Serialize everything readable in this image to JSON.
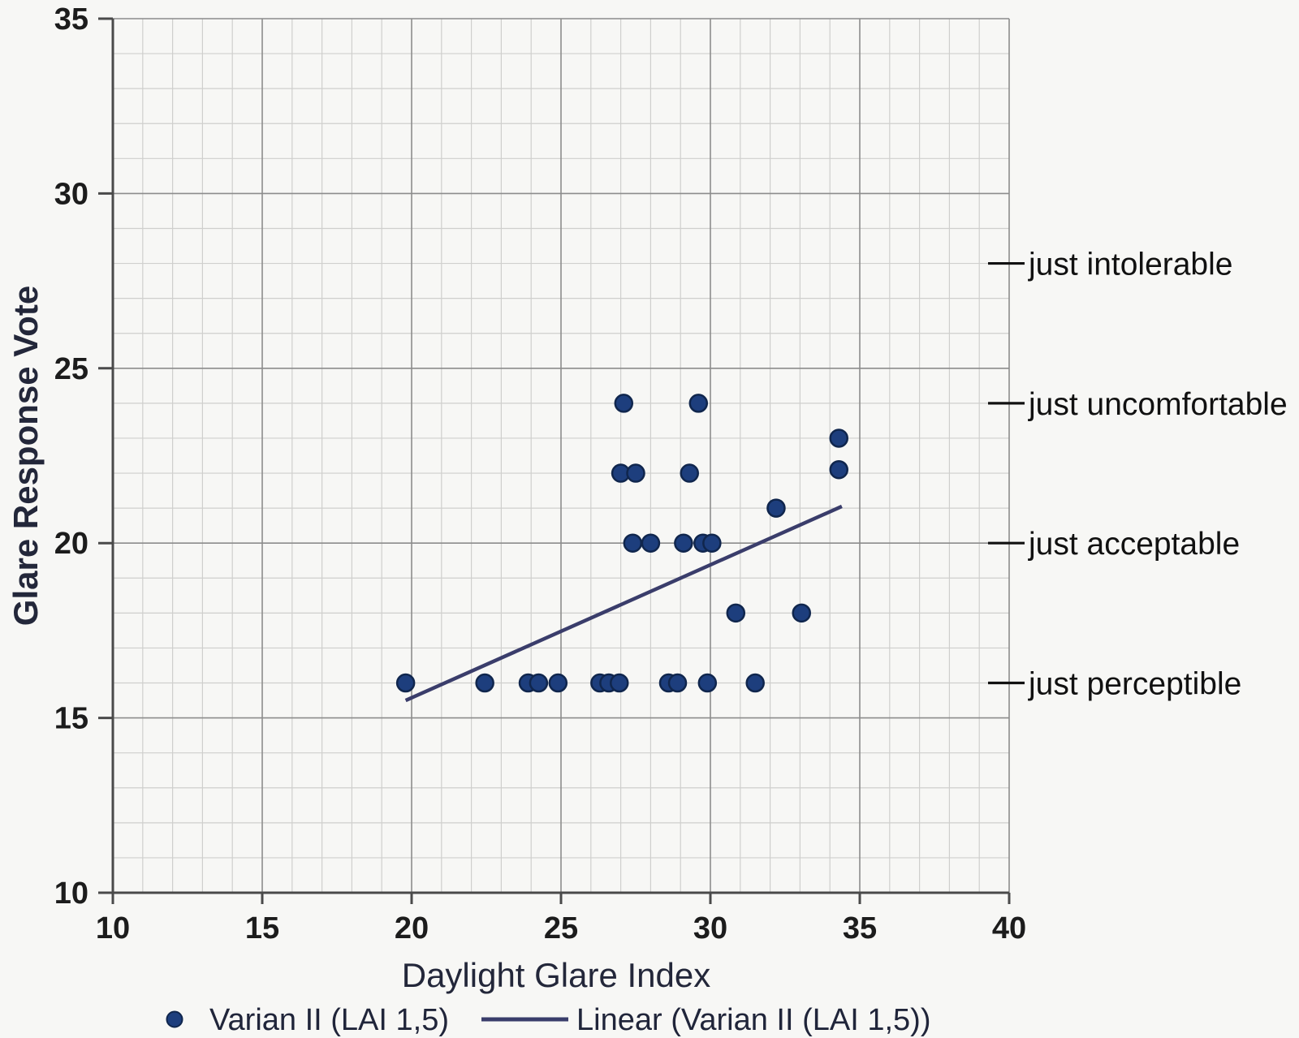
{
  "chart_data": {
    "type": "scatter",
    "title": "",
    "xlabel": "Daylight Glare Index",
    "ylabel": "Glare Response Vote",
    "xlim": [
      10,
      40
    ],
    "ylim": [
      10,
      35
    ],
    "x_ticks": [
      10,
      15,
      20,
      25,
      30,
      35,
      40
    ],
    "y_ticks": [
      10,
      15,
      20,
      25,
      30,
      35
    ],
    "minor_grid_step": 1,
    "major_grid_step": 5,
    "grid": "on",
    "legend_position": "bottom",
    "series": [
      {
        "name": "Varian II (LAI 1,5)",
        "kind": "scatter",
        "marker_color": "#1d3e7d",
        "marker_edge": "#10264d",
        "points": [
          [
            19.8,
            16
          ],
          [
            22.45,
            16
          ],
          [
            23.9,
            16
          ],
          [
            24.25,
            16
          ],
          [
            24.9,
            16
          ],
          [
            26.3,
            16
          ],
          [
            26.6,
            16
          ],
          [
            26.95,
            16
          ],
          [
            28.6,
            16
          ],
          [
            28.9,
            16
          ],
          [
            29.9,
            16
          ],
          [
            31.5,
            16
          ],
          [
            30.85,
            18
          ],
          [
            33.05,
            18
          ],
          [
            27.4,
            20
          ],
          [
            28.0,
            20
          ],
          [
            29.1,
            20
          ],
          [
            29.75,
            20
          ],
          [
            30.05,
            20
          ],
          [
            32.2,
            21
          ],
          [
            27.0,
            22
          ],
          [
            27.5,
            22
          ],
          [
            29.3,
            22
          ],
          [
            34.3,
            22.1
          ],
          [
            34.3,
            23
          ],
          [
            27.1,
            24
          ],
          [
            29.6,
            24
          ]
        ]
      },
      {
        "name": "Linear (Varian II (LAI 1,5))",
        "kind": "line",
        "line_color": "#3a3d6b",
        "points": [
          [
            19.8,
            15.5
          ],
          [
            34.4,
            21.05
          ]
        ]
      }
    ],
    "annotations": [
      {
        "label": "just intolerable",
        "y": 28
      },
      {
        "label": "just uncomfortable",
        "y": 24
      },
      {
        "label": "just acceptable",
        "y": 20
      },
      {
        "label": "just perceptible",
        "y": 16
      }
    ]
  },
  "colors": {
    "background": "#f7f7f5",
    "axis": "#4a4a4a",
    "grid_minor": "#cfcfcd",
    "grid_major": "#8c8c8c",
    "tick_label": "#1c1c1c",
    "axis_title": "#23273a",
    "annotation_text": "#111111",
    "legend_text": "#20253a",
    "marker": "#1d3e7d",
    "trend_line": "#3a3d6b"
  }
}
